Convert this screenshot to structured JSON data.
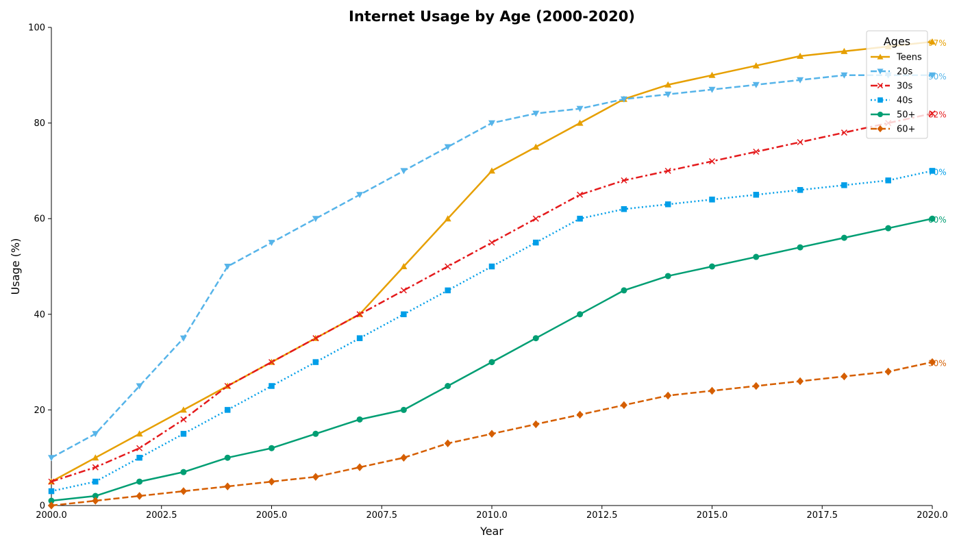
{
  "chart_data": {
    "type": "line",
    "title": "Internet Usage by Age (2000-2020)",
    "xlabel": "Year",
    "ylabel": "Usage (%)",
    "xlim": [
      2000,
      2020
    ],
    "ylim": [
      0,
      100
    ],
    "x_ticks": [
      2000,
      2002.5,
      2005,
      2007.5,
      2010,
      2012.5,
      2015,
      2017.5,
      2020
    ],
    "x_tick_labels": [
      "2000.0",
      "2002.5",
      "2005.0",
      "2007.5",
      "2010.0",
      "2012.5",
      "2015.0",
      "2017.5",
      "2020.0"
    ],
    "y_ticks": [
      0,
      20,
      40,
      60,
      80,
      100
    ],
    "y_tick_labels": [
      "0",
      "20",
      "40",
      "60",
      "80",
      "100"
    ],
    "grid": false,
    "legend": {
      "title": "Ages",
      "position": "top-right"
    },
    "x": [
      2000,
      2001,
      2002,
      2003,
      2004,
      2005,
      2006,
      2007,
      2008,
      2009,
      2010,
      2011,
      2012,
      2013,
      2014,
      2015,
      2016,
      2017,
      2018,
      2019,
      2020
    ],
    "series": [
      {
        "name": "Teens",
        "color": "#E69F00",
        "marker": "triangle-up",
        "dash": "solid",
        "end_label": "97%",
        "values": [
          5,
          10,
          15,
          20,
          25,
          30,
          35,
          40,
          50,
          60,
          70,
          75,
          80,
          85,
          88,
          90,
          92,
          94,
          95,
          96,
          97
        ]
      },
      {
        "name": "20s",
        "color": "#56B4E9",
        "marker": "triangle-down",
        "dash": "dashed",
        "end_label": "90%",
        "values": [
          10,
          15,
          25,
          35,
          50,
          55,
          60,
          65,
          70,
          75,
          80,
          82,
          83,
          85,
          86,
          87,
          88,
          89,
          90,
          90,
          90
        ]
      },
      {
        "name": "30s",
        "color": "#E41A1C",
        "marker": "x",
        "dash": "dashdot",
        "end_label": "82%",
        "values": [
          5,
          8,
          12,
          18,
          25,
          30,
          35,
          40,
          45,
          50,
          55,
          60,
          65,
          68,
          70,
          72,
          74,
          76,
          78,
          80,
          82
        ]
      },
      {
        "name": "40s",
        "color": "#009EE8",
        "marker": "square",
        "dash": "dotted",
        "end_label": "70%",
        "values": [
          3,
          5,
          10,
          15,
          20,
          25,
          30,
          35,
          40,
          45,
          50,
          55,
          60,
          62,
          63,
          64,
          65,
          66,
          67,
          68,
          70
        ]
      },
      {
        "name": "50+",
        "color": "#009E73",
        "marker": "circle",
        "dash": "solid",
        "end_label": "60%",
        "values": [
          1,
          2,
          5,
          7,
          10,
          12,
          15,
          18,
          20,
          25,
          30,
          35,
          40,
          45,
          48,
          50,
          52,
          54,
          56,
          58,
          60
        ]
      },
      {
        "name": "60+",
        "color": "#D55E00",
        "marker": "diamond",
        "dash": "dashed",
        "end_label": "30%",
        "values": [
          0,
          1,
          2,
          3,
          4,
          5,
          6,
          8,
          10,
          13,
          15,
          17,
          19,
          21,
          23,
          24,
          25,
          26,
          27,
          28,
          30
        ]
      }
    ]
  }
}
